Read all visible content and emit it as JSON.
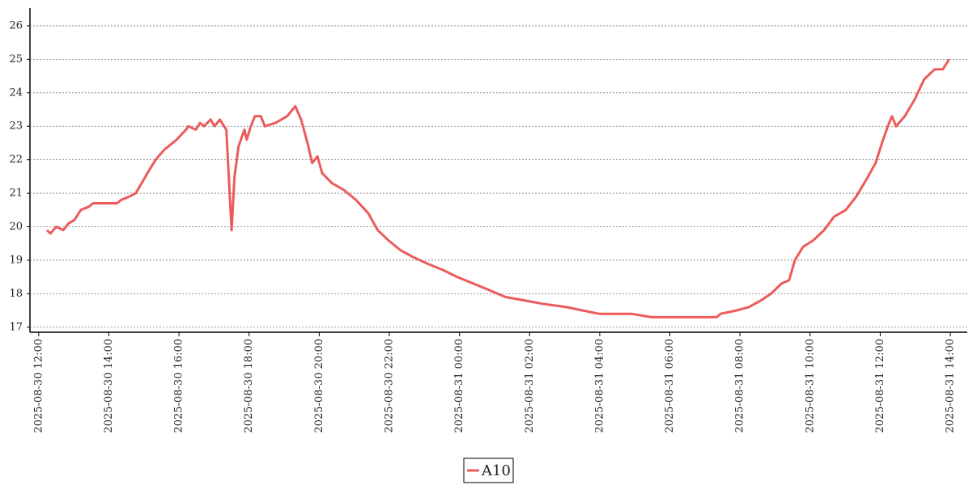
{
  "chart_data": {
    "type": "line",
    "x": [
      "2025-08-30 12:14",
      "2025-08-30 12:20",
      "2025-08-30 12:30",
      "2025-08-30 12:42",
      "2025-08-30 12:51",
      "2025-08-30 13:01",
      "2025-08-30 13:12",
      "2025-08-30 13:26",
      "2025-08-30 13:33",
      "2025-08-30 14:14",
      "2025-08-30 14:21",
      "2025-08-30 14:35",
      "2025-08-30 14:46",
      "2025-08-30 14:56",
      "2025-08-30 15:06",
      "2025-08-30 15:20",
      "2025-08-30 15:35",
      "2025-08-30 15:56",
      "2025-08-30 16:12",
      "2025-08-30 16:16",
      "2025-08-30 16:29",
      "2025-08-30 16:36",
      "2025-08-30 16:43",
      "2025-08-30 16:54",
      "2025-08-30 17:01",
      "2025-08-30 17:10",
      "2025-08-30 17:21",
      "2025-08-30 17:30",
      "2025-08-30 17:35",
      "2025-08-30 17:42",
      "2025-08-30 17:52",
      "2025-08-30 17:56",
      "2025-08-30 18:03",
      "2025-08-30 18:10",
      "2025-08-30 18:20",
      "2025-08-30 18:27",
      "2025-08-30 18:45",
      "2025-08-30 19:05",
      "2025-08-30 19:19",
      "2025-08-30 19:29",
      "2025-08-30 19:40",
      "2025-08-30 19:48",
      "2025-08-30 19:57",
      "2025-08-30 20:05",
      "2025-08-30 20:22",
      "2025-08-30 20:42",
      "2025-08-30 21:03",
      "2025-08-30 21:24",
      "2025-08-30 21:40",
      "2025-08-30 21:58",
      "2025-08-30 22:19",
      "2025-08-30 22:40",
      "2025-08-30 23:05",
      "2025-08-30 23:33",
      "2025-08-30 23:56",
      "2025-08-31 00:24",
      "2025-08-31 00:52",
      "2025-08-31 01:19",
      "2025-08-31 01:51",
      "2025-08-31 02:22",
      "2025-08-31 03:03",
      "2025-08-31 03:31",
      "2025-08-31 03:59",
      "2025-08-31 04:54",
      "2025-08-31 05:29",
      "2025-08-31 07:20",
      "2025-08-31 07:27",
      "2025-08-31 07:54",
      "2025-08-31 08:15",
      "2025-08-31 08:36",
      "2025-08-31 08:53",
      "2025-08-31 09:11",
      "2025-08-31 09:24",
      "2025-08-31 09:34",
      "2025-08-31 09:48",
      "2025-08-31 10:06",
      "2025-08-31 10:24",
      "2025-08-31 10:41",
      "2025-08-31 11:01",
      "2025-08-31 11:19",
      "2025-08-31 11:36",
      "2025-08-31 11:52",
      "2025-08-31 12:03",
      "2025-08-31 12:13",
      "2025-08-31 12:20",
      "2025-08-31 12:27",
      "2025-08-31 12:42",
      "2025-08-31 12:59",
      "2025-08-31 13:15",
      "2025-08-31 13:33",
      "2025-08-31 13:47",
      "2025-08-31 13:58"
    ],
    "series": [
      {
        "name": "A10",
        "color": "#ec5b5b",
        "values": [
          19.9,
          19.8,
          20.0,
          19.9,
          20.1,
          20.2,
          20.5,
          20.6,
          20.7,
          20.7,
          20.8,
          20.9,
          21.0,
          21.3,
          21.6,
          22.0,
          22.3,
          22.6,
          22.9,
          23.0,
          22.9,
          23.1,
          23.0,
          23.2,
          23.0,
          23.2,
          22.9,
          19.9,
          21.5,
          22.4,
          22.9,
          22.6,
          23.0,
          23.3,
          23.3,
          23.0,
          23.1,
          23.3,
          23.6,
          23.2,
          22.5,
          21.9,
          22.1,
          21.6,
          21.3,
          21.1,
          20.8,
          20.4,
          19.9,
          19.6,
          19.3,
          19.1,
          18.9,
          18.7,
          18.5,
          18.3,
          18.1,
          17.9,
          17.8,
          17.7,
          17.6,
          17.5,
          17.4,
          17.4,
          17.3,
          17.3,
          17.4,
          17.5,
          17.6,
          17.8,
          18.0,
          18.3,
          18.4,
          19.0,
          19.4,
          19.6,
          19.9,
          20.3,
          20.5,
          20.9,
          21.4,
          21.9,
          22.5,
          23.0,
          23.3,
          23.0,
          23.3,
          23.8,
          24.4,
          24.7,
          24.7,
          25.0
        ]
      }
    ],
    "xlim": [
      "2025-08-30 11:45",
      "2025-08-31 14:29"
    ],
    "xticks": [
      "2025-08-30 12:00",
      "2025-08-30 14:00",
      "2025-08-30 16:00",
      "2025-08-30 18:00",
      "2025-08-30 20:00",
      "2025-08-30 22:00",
      "2025-08-31 00:00",
      "2025-08-31 02:00",
      "2025-08-31 04:00",
      "2025-08-31 06:00",
      "2025-08-31 08:00",
      "2025-08-31 10:00",
      "2025-08-31 12:00",
      "2025-08-31 14:00"
    ],
    "ylim": [
      16.85,
      26.53
    ],
    "yticks": [
      17,
      18,
      19,
      20,
      21,
      22,
      23,
      24,
      25,
      26
    ],
    "grid": true
  }
}
